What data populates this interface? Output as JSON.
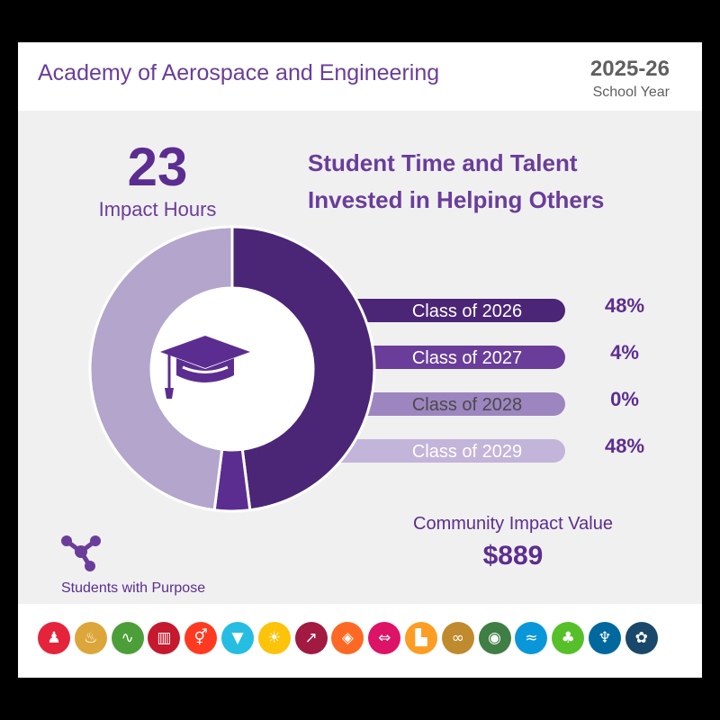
{
  "header": {
    "program_title": "Academy of Aerospace and Engineering",
    "year": "2025-26",
    "year_sub": "School Year"
  },
  "impact_hours": {
    "value": "23",
    "label": "Impact Hours"
  },
  "chart_heading": "Student Time and Talent Invested in Helping Others",
  "chart_data": {
    "type": "pie",
    "variant": "donut",
    "title": "Student Time and Talent Invested in Helping Others",
    "center_icon": "graduation-cap-icon",
    "categories": [
      "Class of 2026",
      "Class of 2027",
      "Class of 2028",
      "Class of 2029"
    ],
    "values": [
      48,
      4,
      0,
      48
    ],
    "value_labels": [
      "48%",
      "4%",
      "0%",
      "48%"
    ],
    "colors": [
      "#4b2576",
      "#6a3d9a",
      "#9d86c0",
      "#c3b4da"
    ],
    "slice_colors": [
      "#4b2576",
      "#5c2d91",
      "#9b84bd",
      "#b3a5cb"
    ],
    "legend": "right"
  },
  "community_value": {
    "label": "Community Impact Value",
    "amount": "$889"
  },
  "brand": {
    "label": "Students with Purpose",
    "icon": "students-with-purpose-logo-icon",
    "color": "#6a3d9a"
  },
  "goals": [
    {
      "icon": "family-icon",
      "color": "#e5243b",
      "glyph": "♟"
    },
    {
      "icon": "bowl-icon",
      "color": "#dda63a",
      "glyph": "♨"
    },
    {
      "icon": "heartbeat-icon",
      "color": "#4c9f38",
      "glyph": "∿"
    },
    {
      "icon": "book-icon",
      "color": "#c5192d",
      "glyph": "▥"
    },
    {
      "icon": "gender-icon",
      "color": "#ff3a21",
      "glyph": "⚥"
    },
    {
      "icon": "water-icon",
      "color": "#26bde2",
      "glyph": "▼"
    },
    {
      "icon": "sun-icon",
      "color": "#fcc30b",
      "glyph": "☀"
    },
    {
      "icon": "growth-chart-icon",
      "color": "#a21942",
      "glyph": "↗"
    },
    {
      "icon": "cubes-icon",
      "color": "#fd6925",
      "glyph": "◈"
    },
    {
      "icon": "equality-icon",
      "color": "#dd1367",
      "glyph": "⇔"
    },
    {
      "icon": "city-icon",
      "color": "#fd9d24",
      "glyph": "▙"
    },
    {
      "icon": "infinity-icon",
      "color": "#bf8b2e",
      "glyph": "∞"
    },
    {
      "icon": "eye-icon",
      "color": "#3f7e44",
      "glyph": "◉"
    },
    {
      "icon": "fish-icon",
      "color": "#0a97d9",
      "glyph": "≈"
    },
    {
      "icon": "tree-icon",
      "color": "#56c02b",
      "glyph": "♣"
    },
    {
      "icon": "dove-icon",
      "color": "#00689d",
      "glyph": "♆"
    },
    {
      "icon": "rings-icon",
      "color": "#19486a",
      "glyph": "✿"
    }
  ]
}
